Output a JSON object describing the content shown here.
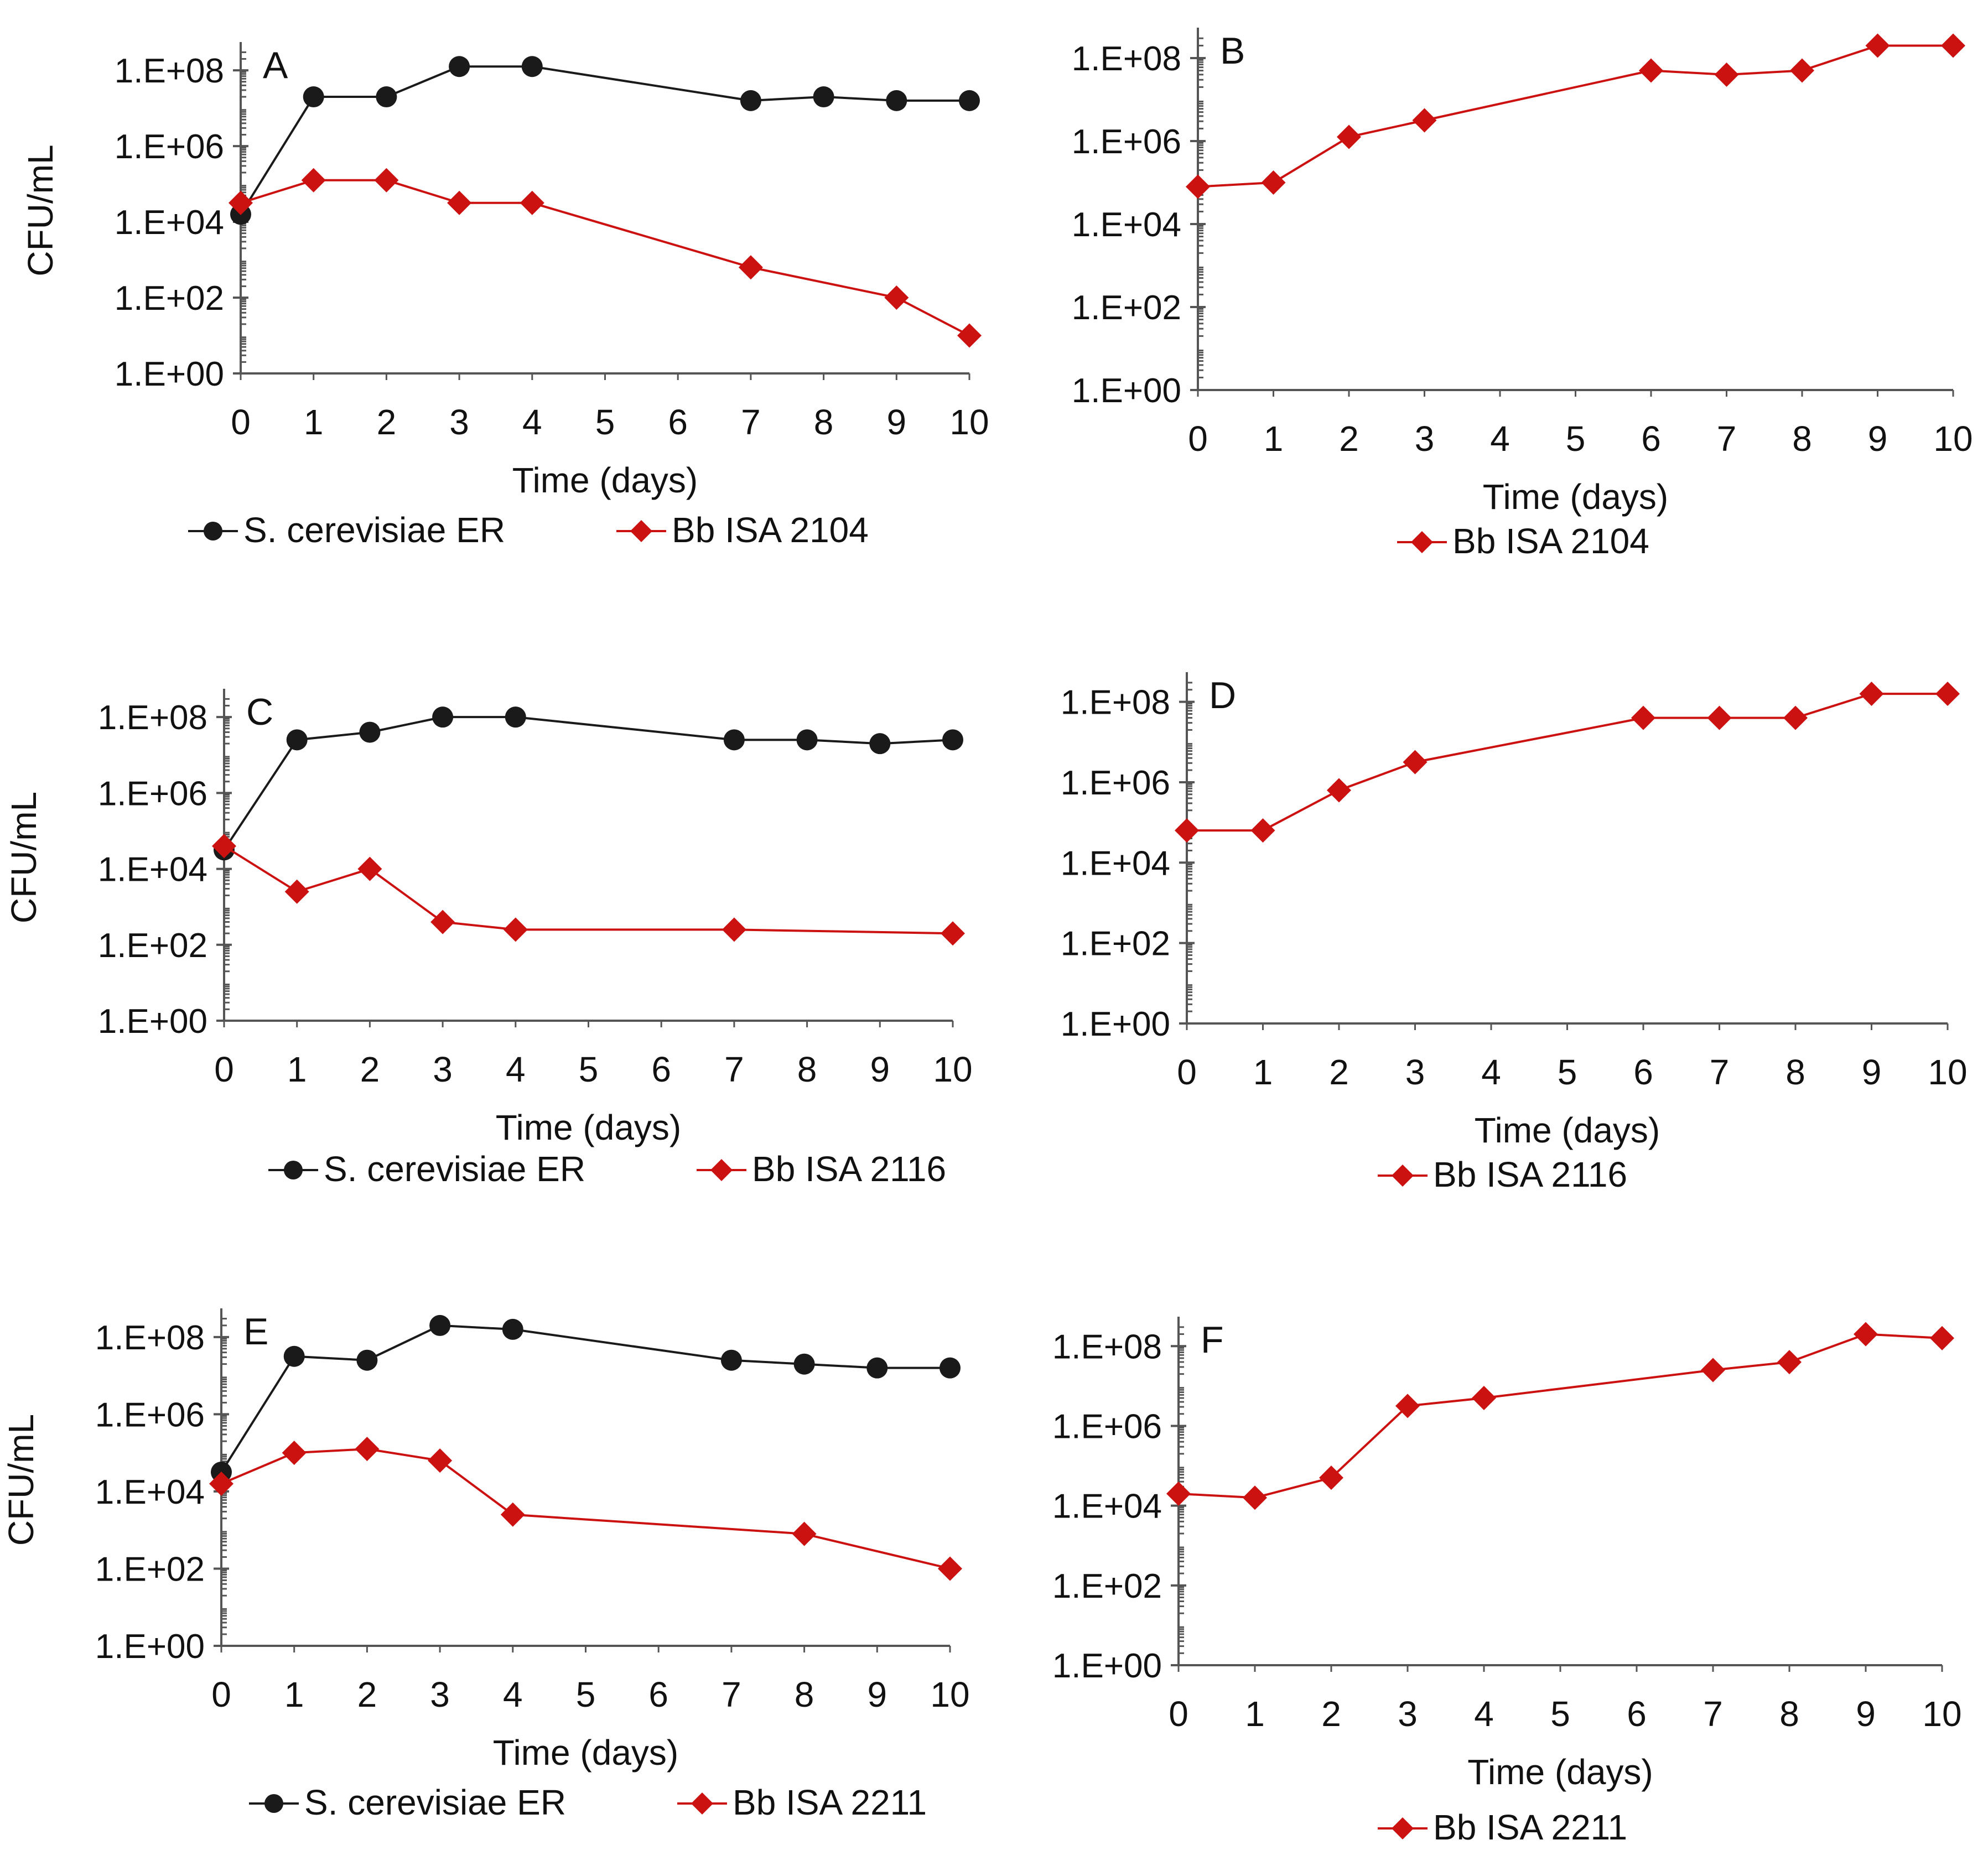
{
  "colors": {
    "yeast": "#1a1a1a",
    "fungus": "#cc1111",
    "axis": "#555555"
  },
  "chart_data": [
    {
      "panel": "A",
      "type": "line",
      "title": "",
      "xlabel": "Time (days)",
      "ylabel": "CFU/mL",
      "xlim": [
        0,
        10
      ],
      "ylim_log10": [
        0,
        8.6
      ],
      "x_ticks": [
        "0",
        "1",
        "2",
        "3",
        "4",
        "5",
        "6",
        "7",
        "8",
        "9",
        "10"
      ],
      "y_ticks": [
        "1.E+00",
        "1.E+02",
        "1.E+04",
        "1.E+06",
        "1.E+08"
      ],
      "series": [
        {
          "name": "S. cerevisiae ER",
          "marker": "circle",
          "x": [
            0,
            1,
            2,
            3,
            4,
            7,
            8,
            9,
            10
          ],
          "log10_cfu": [
            4.2,
            7.3,
            7.3,
            8.1,
            8.1,
            7.2,
            7.3,
            7.2,
            7.2
          ]
        },
        {
          "name": "Bb ISA 2104",
          "marker": "diamond",
          "x": [
            0,
            1,
            2,
            3,
            4,
            7,
            8,
            9,
            10
          ],
          "log10_cfu": [
            4.5,
            5.1,
            5.1,
            4.5,
            4.5,
            2.8,
            null,
            2.0,
            1.0
          ]
        }
      ]
    },
    {
      "panel": "B",
      "type": "line",
      "title": "",
      "xlabel": "Time (days)",
      "ylabel": "",
      "xlim": [
        0,
        10
      ],
      "ylim_log10": [
        0,
        8.6
      ],
      "x_ticks": [
        "0",
        "1",
        "2",
        "3",
        "4",
        "5",
        "6",
        "7",
        "8",
        "9",
        "10"
      ],
      "y_ticks": [
        "1.E+00",
        "1.E+02",
        "1.E+04",
        "1.E+06",
        "1.E+08"
      ],
      "series": [
        {
          "name": "Bb ISA 2104",
          "marker": "diamond",
          "x": [
            0,
            1,
            2,
            3,
            6,
            7,
            8,
            9,
            10
          ],
          "log10_cfu": [
            4.9,
            5.0,
            6.1,
            6.5,
            7.7,
            7.6,
            7.7,
            8.3,
            8.3
          ]
        }
      ]
    },
    {
      "panel": "C",
      "type": "line",
      "title": "",
      "xlabel": "Time (days)",
      "ylabel": "CFU/mL",
      "xlim": [
        0,
        10
      ],
      "ylim_log10": [
        0,
        8.6
      ],
      "x_ticks": [
        "0",
        "1",
        "2",
        "3",
        "4",
        "5",
        "6",
        "7",
        "8",
        "9",
        "10"
      ],
      "y_ticks": [
        "1.E+00",
        "1.E+02",
        "1.E+04",
        "1.E+06",
        "1.E+08"
      ],
      "series": [
        {
          "name": "S. cerevisiae ER",
          "marker": "circle",
          "x": [
            0,
            1,
            2,
            3,
            4,
            7,
            8,
            9,
            10
          ],
          "log10_cfu": [
            4.5,
            7.4,
            7.6,
            8.0,
            8.0,
            7.4,
            7.4,
            7.3,
            7.4
          ]
        },
        {
          "name": "Bb ISA 2116",
          "marker": "diamond",
          "x": [
            0,
            1,
            2,
            3,
            4,
            7,
            10
          ],
          "log10_cfu": [
            4.6,
            3.4,
            4.0,
            2.6,
            2.4,
            2.4,
            2.3
          ]
        }
      ]
    },
    {
      "panel": "D",
      "type": "line",
      "title": "",
      "xlabel": "Time (days)",
      "ylabel": "",
      "xlim": [
        0,
        10
      ],
      "ylim_log10": [
        0,
        8.6
      ],
      "x_ticks": [
        "0",
        "1",
        "2",
        "3",
        "4",
        "5",
        "6",
        "7",
        "8",
        "9",
        "10"
      ],
      "y_ticks": [
        "1.E+00",
        "1.E+02",
        "1.E+04",
        "1.E+06",
        "1.E+08"
      ],
      "series": [
        {
          "name": "Bb ISA 2116",
          "marker": "diamond",
          "x": [
            0,
            1,
            2,
            3,
            6,
            7,
            8,
            9,
            10
          ],
          "log10_cfu": [
            4.8,
            4.8,
            5.8,
            6.5,
            7.6,
            7.6,
            7.6,
            8.2,
            8.2
          ]
        }
      ]
    },
    {
      "panel": "E",
      "type": "line",
      "title": "",
      "xlabel": "Time (days)",
      "ylabel": "CFU/mL",
      "xlim": [
        0,
        10
      ],
      "ylim_log10": [
        0,
        8.6
      ],
      "x_ticks": [
        "0",
        "1",
        "2",
        "3",
        "4",
        "5",
        "6",
        "7",
        "8",
        "9",
        "10"
      ],
      "y_ticks": [
        "1.E+00",
        "1.E+02",
        "1.E+04",
        "1.E+06",
        "1.E+08"
      ],
      "series": [
        {
          "name": "S. cerevisiae ER",
          "marker": "circle",
          "x": [
            0,
            1,
            2,
            3,
            4,
            7,
            8,
            9,
            10
          ],
          "log10_cfu": [
            4.5,
            7.5,
            7.4,
            8.3,
            8.2,
            7.4,
            7.3,
            7.2,
            7.2
          ]
        },
        {
          "name": "Bb ISA 2211",
          "marker": "diamond",
          "x": [
            0,
            1,
            2,
            3,
            4,
            8,
            10
          ],
          "log10_cfu": [
            4.2,
            5.0,
            5.1,
            4.8,
            3.4,
            2.9,
            2.0
          ]
        }
      ]
    },
    {
      "panel": "F",
      "type": "line",
      "title": "",
      "xlabel": "Time (days)",
      "ylabel": "",
      "xlim": [
        0,
        10
      ],
      "ylim_log10": [
        0,
        8.6
      ],
      "x_ticks": [
        "0",
        "1",
        "2",
        "3",
        "4",
        "5",
        "6",
        "7",
        "8",
        "9",
        "10"
      ],
      "y_ticks": [
        "1.E+00",
        "1.E+02",
        "1.E+04",
        "1.E+06",
        "1.E+08"
      ],
      "series": [
        {
          "name": "Bb ISA 2211",
          "marker": "diamond",
          "x": [
            0,
            1,
            2,
            3,
            4,
            7,
            8,
            9,
            10
          ],
          "log10_cfu": [
            4.3,
            4.2,
            4.7,
            6.5,
            6.7,
            7.4,
            7.6,
            8.3,
            8.2
          ]
        }
      ]
    }
  ]
}
